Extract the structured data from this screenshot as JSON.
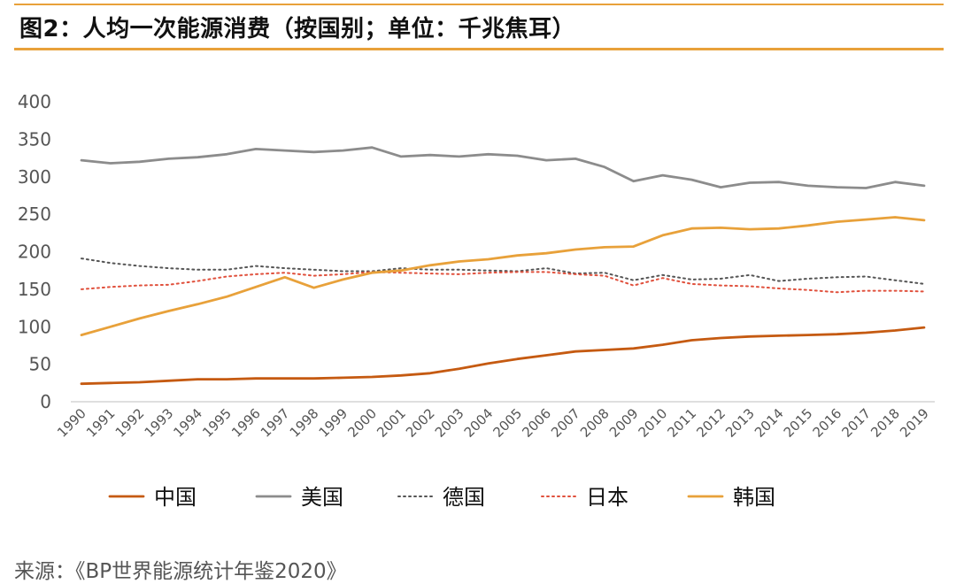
{
  "header": {
    "title": "图2：人均一次能源消费（按国别；单位：千兆焦耳）",
    "accent_color": "#E8A13A"
  },
  "source": "来源：《BP世界能源统计年鉴2020》",
  "chart_data": {
    "type": "line",
    "title": "图2：人均一次能源消费（按国别；单位：千兆焦耳）",
    "xlabel": "",
    "ylabel": "",
    "ylim": [
      0,
      400
    ],
    "yticks": [
      0,
      50,
      100,
      150,
      200,
      250,
      300,
      350,
      400
    ],
    "grid": false,
    "legend_position": "bottom",
    "categories": [
      "1990",
      "1991",
      "1992",
      "1993",
      "1994",
      "1995",
      "1996",
      "1997",
      "1998",
      "1999",
      "2000",
      "2001",
      "2002",
      "2003",
      "2004",
      "2005",
      "2006",
      "2007",
      "2008",
      "2009",
      "2010",
      "2011",
      "2012",
      "2013",
      "2014",
      "2015",
      "2016",
      "2017",
      "2018",
      "2019"
    ],
    "series": [
      {
        "name": "中国",
        "color": "#C55A11",
        "dash": "solid",
        "values": [
          24,
          25,
          26,
          28,
          30,
          30,
          31,
          31,
          31,
          32,
          33,
          35,
          38,
          44,
          51,
          57,
          62,
          67,
          69,
          71,
          76,
          82,
          85,
          87,
          88,
          89,
          90,
          92,
          95,
          99
        ]
      },
      {
        "name": "美国",
        "color": "#8C8C8C",
        "dash": "solid",
        "values": [
          322,
          318,
          320,
          324,
          326,
          330,
          337,
          335,
          333,
          335,
          339,
          327,
          329,
          327,
          330,
          328,
          322,
          324,
          313,
          294,
          302,
          296,
          286,
          292,
          293,
          288,
          286,
          285,
          293,
          288
        ]
      },
      {
        "name": "德国",
        "color": "#555555",
        "dash": "dot",
        "values": [
          191,
          185,
          181,
          178,
          176,
          176,
          181,
          178,
          176,
          174,
          174,
          178,
          176,
          176,
          175,
          174,
          178,
          171,
          172,
          162,
          169,
          163,
          164,
          169,
          161,
          164,
          166,
          167,
          162,
          157
        ]
      },
      {
        "name": "日本",
        "color": "#E0503C",
        "dash": "dot",
        "values": [
          150,
          153,
          155,
          156,
          161,
          167,
          170,
          172,
          168,
          170,
          173,
          172,
          171,
          170,
          172,
          173,
          173,
          170,
          168,
          155,
          165,
          157,
          155,
          154,
          151,
          149,
          146,
          148,
          148,
          147
        ]
      },
      {
        "name": "韩国",
        "color": "#E8A13A",
        "dash": "solid",
        "values": [
          89,
          100,
          111,
          121,
          130,
          140,
          153,
          166,
          152,
          163,
          172,
          175,
          182,
          187,
          190,
          195,
          198,
          203,
          206,
          207,
          222,
          231,
          232,
          230,
          231,
          235,
          240,
          243,
          246,
          242
        ]
      }
    ]
  }
}
